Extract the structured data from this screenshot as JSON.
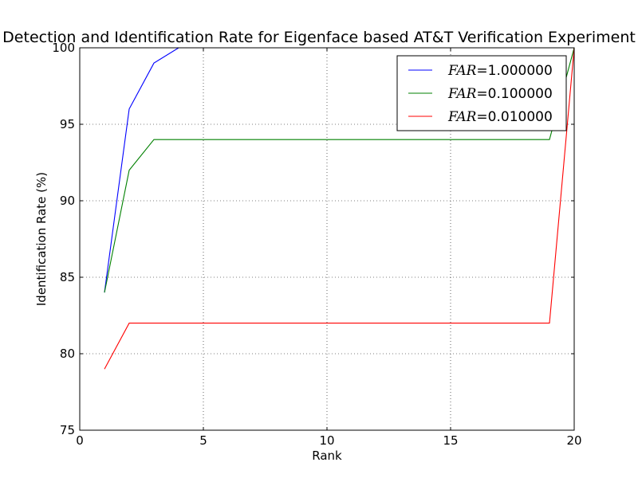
{
  "chart_data": {
    "type": "line",
    "title": "Detection and Identification Rate for Eigenface based AT&T Verification Experiment",
    "xlabel": "Rank",
    "ylabel": "Identification Rate (%)",
    "xlim": [
      0,
      20
    ],
    "ylim": [
      75,
      100
    ],
    "xticks": [
      0,
      5,
      10,
      15,
      20
    ],
    "yticks": [
      75,
      80,
      85,
      90,
      95,
      100
    ],
    "xtick_labels": [
      "0",
      "5",
      "10",
      "15",
      "20"
    ],
    "ytick_labels": [
      "75",
      "80",
      "85",
      "90",
      "95",
      "100"
    ],
    "grid": true,
    "legend_position": "top-right",
    "x": [
      1,
      2,
      3,
      4,
      5,
      6,
      7,
      8,
      9,
      10,
      11,
      12,
      13,
      14,
      15,
      16,
      17,
      18,
      19,
      20
    ],
    "series": [
      {
        "name": "FAR = 1.000000",
        "name_var": "FAR",
        "name_eq": "=",
        "name_val": "1.000000",
        "color": "#0000ff",
        "values": [
          84,
          96,
          99,
          100,
          100,
          100,
          100,
          100,
          100,
          100,
          100,
          100,
          100,
          100,
          100,
          100,
          100,
          100,
          100,
          100
        ]
      },
      {
        "name": "FAR = 0.100000",
        "name_var": "FAR",
        "name_eq": "=",
        "name_val": "0.100000",
        "color": "#008000",
        "values": [
          84,
          92,
          94,
          94,
          94,
          94,
          94,
          94,
          94,
          94,
          94,
          94,
          94,
          94,
          94,
          94,
          94,
          94,
          94,
          100
        ]
      },
      {
        "name": "FAR = 0.010000",
        "name_var": "FAR",
        "name_eq": "=",
        "name_val": "0.010000",
        "color": "#ff0000",
        "values": [
          79,
          82,
          82,
          82,
          82,
          82,
          82,
          82,
          82,
          82,
          82,
          82,
          82,
          82,
          82,
          82,
          82,
          82,
          82,
          100
        ]
      }
    ]
  }
}
